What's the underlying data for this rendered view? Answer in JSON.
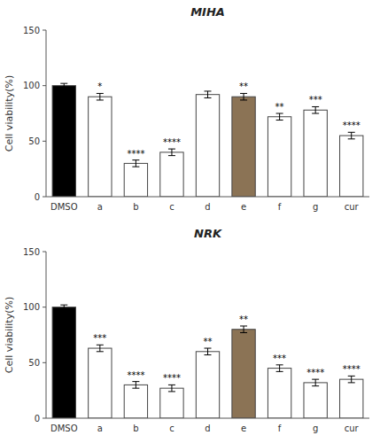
{
  "chart_data": [
    {
      "type": "bar",
      "title": "MIHA",
      "y_label": "Cell viability(%)",
      "categories": [
        "DMSO",
        "a",
        "b",
        "c",
        "d",
        "e",
        "f",
        "g",
        "cur"
      ],
      "values": [
        100,
        90,
        30,
        40,
        92,
        90,
        72,
        78,
        55
      ],
      "errors": [
        2,
        3,
        3,
        3,
        3,
        3,
        3,
        3,
        3
      ],
      "colors": [
        "#000000",
        "#ffffff",
        "#ffffff",
        "#ffffff",
        "#ffffff",
        "#8B7355",
        "#ffffff",
        "#ffffff",
        "#ffffff"
      ],
      "annotations": [
        null,
        "*",
        "****",
        "****",
        null,
        "**",
        "**",
        "***",
        "****"
      ],
      "ylim": [
        0,
        150
      ],
      "yticks": [
        0,
        50,
        100,
        150
      ],
      "grid": false
    },
    {
      "type": "bar",
      "title": "NRK",
      "y_label": "Cell viability(%)",
      "categories": [
        "DMSO",
        "a",
        "b",
        "c",
        "d",
        "e",
        "f",
        "g",
        "cur"
      ],
      "values": [
        100,
        63,
        30,
        27,
        60,
        80,
        45,
        32,
        35
      ],
      "errors": [
        2,
        3,
        3,
        3,
        3,
        3,
        3,
        3,
        3
      ],
      "colors": [
        "#000000",
        "#ffffff",
        "#ffffff",
        "#ffffff",
        "#ffffff",
        "#8B7355",
        "#ffffff",
        "#ffffff",
        "#ffffff"
      ],
      "annotations": [
        null,
        "***",
        "****",
        "****",
        "**",
        "**",
        "***",
        "****",
        "****"
      ],
      "ylim": [
        0,
        150
      ],
      "yticks": [
        0,
        50,
        100,
        150
      ],
      "grid": false
    }
  ]
}
